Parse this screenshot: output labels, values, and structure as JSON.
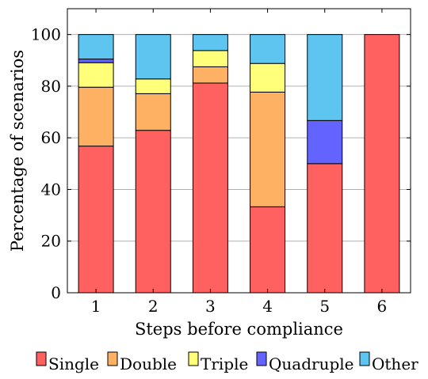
{
  "chart_data": {
    "type": "bar",
    "stacked": true,
    "categories": [
      "1",
      "2",
      "3",
      "4",
      "5",
      "6"
    ],
    "xlabel": "Steps before compliance",
    "ylabel": "Percentage of scenarios",
    "ylim": [
      0,
      110
    ],
    "yticks": [
      0,
      20,
      40,
      60,
      80,
      100
    ],
    "grid": "horizontal",
    "legend_position": "bottom",
    "series": [
      {
        "name": "Single",
        "color": "#ff6161",
        "values": [
          56.8,
          62.9,
          81.2,
          33.3,
          50.0,
          100.0
        ]
      },
      {
        "name": "Double",
        "color": "#ffb163",
        "values": [
          22.8,
          14.2,
          6.3,
          44.4,
          0,
          0
        ]
      },
      {
        "name": "Triple",
        "color": "#ffff7a",
        "values": [
          9.5,
          5.7,
          6.3,
          11.1,
          0,
          0
        ]
      },
      {
        "name": "Quadruple",
        "color": "#6363ff",
        "values": [
          1.4,
          0,
          0,
          0,
          16.7,
          0
        ]
      },
      {
        "name": "Other",
        "color": "#5ec5f0",
        "values": [
          9.5,
          17.2,
          6.2,
          11.2,
          33.3,
          0
        ]
      }
    ]
  }
}
